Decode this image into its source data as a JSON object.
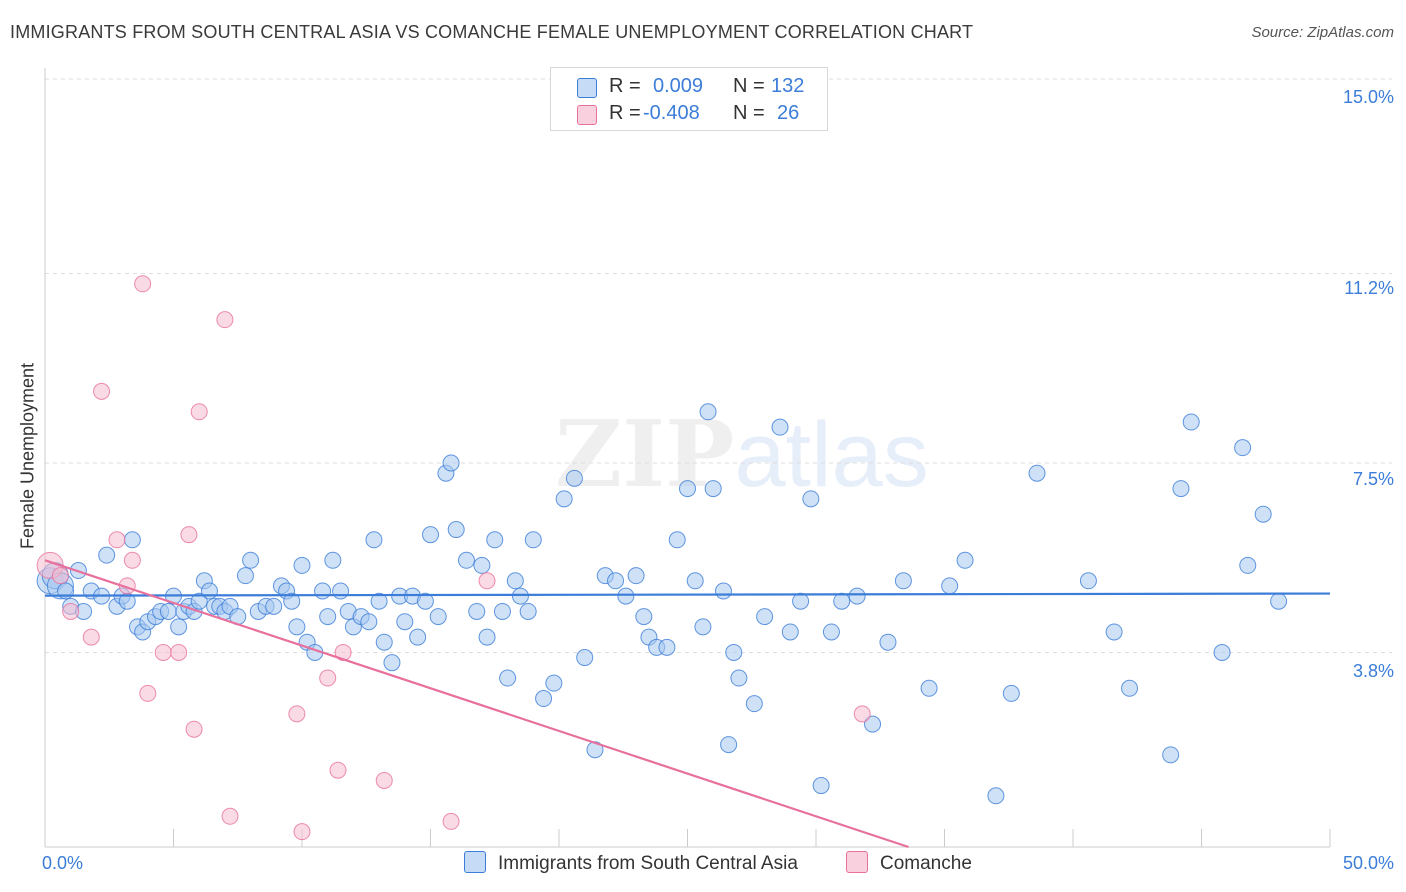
{
  "title": "IMMIGRANTS FROM SOUTH CENTRAL ASIA VS COMANCHE FEMALE UNEMPLOYMENT CORRELATION CHART",
  "source": "Source: ZipAtlas.com",
  "watermark": {
    "part1": "ZIP",
    "part2": "atlas"
  },
  "colors": {
    "blue": "#3b7dd8",
    "blue_fill": "#a8c8f0",
    "pink": "#e8709c",
    "pink_fill": "#f6bcd0",
    "grid": "#dddddd",
    "axis_text": "#3b7dd8"
  },
  "stats_legend": [
    {
      "series": "Immigrants from South Central Asia",
      "r_label": "R =",
      "r_value": "0.009",
      "n_label": "N =",
      "n_value": "132"
    },
    {
      "series": "Comanche",
      "r_label": "R =",
      "r_value": "-0.408",
      "n_label": "N =",
      "n_value": "26"
    }
  ],
  "chart_data": {
    "type": "scatter",
    "title": "IMMIGRANTS FROM SOUTH CENTRAL ASIA VS COMANCHE FEMALE UNEMPLOYMENT CORRELATION CHART",
    "xlabel": "",
    "ylabel": "Female Unemployment",
    "xlim": [
      0,
      50
    ],
    "ylim": [
      0,
      15.0
    ],
    "x_tick_labels": [
      "0.0%",
      "50.0%"
    ],
    "y_ticks": [
      3.8,
      7.5,
      11.2,
      15.0
    ],
    "y_tick_labels": [
      "3.8%",
      "7.5%",
      "11.2%",
      "15.0%"
    ],
    "grid": true,
    "legend_position": "bottom",
    "series": [
      {
        "name": "Immigrants from South Central Asia",
        "color": "#3b7dd8",
        "trend": {
          "x": [
            0,
            50
          ],
          "y": [
            4.91,
            4.95
          ]
        },
        "points": [
          [
            0.2,
            5.2
          ],
          [
            0.4,
            5.3
          ],
          [
            0.6,
            5.1
          ],
          [
            0.8,
            5.0
          ],
          [
            1.0,
            4.7
          ],
          [
            1.3,
            5.4
          ],
          [
            1.5,
            4.6
          ],
          [
            1.8,
            5.0
          ],
          [
            2.2,
            4.9
          ],
          [
            2.4,
            5.7
          ],
          [
            2.8,
            4.7
          ],
          [
            3.0,
            4.9
          ],
          [
            3.2,
            4.8
          ],
          [
            3.4,
            6.0
          ],
          [
            3.6,
            4.3
          ],
          [
            3.8,
            4.2
          ],
          [
            4.0,
            4.4
          ],
          [
            4.3,
            4.5
          ],
          [
            4.5,
            4.6
          ],
          [
            4.8,
            4.6
          ],
          [
            5.0,
            4.9
          ],
          [
            5.2,
            4.3
          ],
          [
            5.4,
            4.6
          ],
          [
            5.6,
            4.7
          ],
          [
            5.8,
            4.6
          ],
          [
            6.0,
            4.8
          ],
          [
            6.2,
            5.2
          ],
          [
            6.4,
            5.0
          ],
          [
            6.6,
            4.7
          ],
          [
            6.8,
            4.7
          ],
          [
            7.0,
            4.6
          ],
          [
            7.2,
            4.7
          ],
          [
            7.5,
            4.5
          ],
          [
            7.8,
            5.3
          ],
          [
            8.0,
            5.6
          ],
          [
            8.3,
            4.6
          ],
          [
            8.6,
            4.7
          ],
          [
            8.9,
            4.7
          ],
          [
            9.2,
            5.1
          ],
          [
            9.4,
            5.0
          ],
          [
            9.6,
            4.8
          ],
          [
            9.8,
            4.3
          ],
          [
            10.0,
            5.5
          ],
          [
            10.2,
            4.0
          ],
          [
            10.5,
            3.8
          ],
          [
            10.8,
            5.0
          ],
          [
            11.0,
            4.5
          ],
          [
            11.2,
            5.6
          ],
          [
            11.5,
            5.0
          ],
          [
            11.8,
            4.6
          ],
          [
            12.0,
            4.3
          ],
          [
            12.3,
            4.5
          ],
          [
            12.6,
            4.4
          ],
          [
            12.8,
            6.0
          ],
          [
            13.0,
            4.8
          ],
          [
            13.2,
            4.0
          ],
          [
            13.5,
            3.6
          ],
          [
            13.8,
            4.9
          ],
          [
            14.0,
            4.4
          ],
          [
            14.3,
            4.9
          ],
          [
            14.5,
            4.1
          ],
          [
            14.8,
            4.8
          ],
          [
            15.0,
            6.1
          ],
          [
            15.3,
            4.5
          ],
          [
            15.6,
            7.3
          ],
          [
            15.8,
            7.5
          ],
          [
            16.0,
            6.2
          ],
          [
            16.4,
            5.6
          ],
          [
            16.8,
            4.6
          ],
          [
            17.0,
            5.5
          ],
          [
            17.2,
            4.1
          ],
          [
            17.5,
            6.0
          ],
          [
            17.8,
            4.6
          ],
          [
            18.0,
            3.3
          ],
          [
            18.3,
            5.2
          ],
          [
            18.5,
            4.9
          ],
          [
            18.8,
            4.6
          ],
          [
            19.0,
            6.0
          ],
          [
            19.4,
            2.9
          ],
          [
            19.8,
            3.2
          ],
          [
            20.2,
            6.8
          ],
          [
            20.6,
            7.2
          ],
          [
            21.0,
            3.7
          ],
          [
            21.4,
            1.9
          ],
          [
            21.8,
            5.3
          ],
          [
            22.2,
            5.2
          ],
          [
            22.6,
            4.9
          ],
          [
            23.0,
            5.3
          ],
          [
            23.3,
            4.5
          ],
          [
            23.5,
            4.1
          ],
          [
            23.8,
            3.9
          ],
          [
            24.2,
            3.9
          ],
          [
            24.6,
            6.0
          ],
          [
            25.0,
            7.0
          ],
          [
            25.3,
            5.2
          ],
          [
            25.6,
            4.3
          ],
          [
            25.8,
            8.5
          ],
          [
            26.0,
            7.0
          ],
          [
            26.4,
            5.0
          ],
          [
            26.6,
            2.0
          ],
          [
            26.8,
            3.8
          ],
          [
            27.0,
            3.3
          ],
          [
            27.6,
            2.8
          ],
          [
            28.0,
            4.5
          ],
          [
            28.6,
            8.2
          ],
          [
            29.0,
            4.2
          ],
          [
            29.4,
            4.8
          ],
          [
            29.8,
            6.8
          ],
          [
            30.2,
            1.2
          ],
          [
            30.6,
            4.2
          ],
          [
            31.0,
            4.8
          ],
          [
            31.6,
            4.9
          ],
          [
            32.2,
            2.4
          ],
          [
            32.8,
            4.0
          ],
          [
            33.4,
            5.2
          ],
          [
            34.4,
            3.1
          ],
          [
            35.2,
            5.1
          ],
          [
            35.8,
            5.6
          ],
          [
            37.0,
            1.0
          ],
          [
            37.6,
            3.0
          ],
          [
            38.6,
            7.3
          ],
          [
            40.6,
            5.2
          ],
          [
            41.6,
            4.2
          ],
          [
            42.2,
            3.1
          ],
          [
            43.8,
            1.8
          ],
          [
            44.2,
            7.0
          ],
          [
            44.6,
            8.3
          ],
          [
            45.8,
            3.8
          ],
          [
            46.6,
            7.8
          ],
          [
            46.8,
            5.5
          ],
          [
            47.4,
            6.5
          ],
          [
            48.0,
            4.8
          ]
        ]
      },
      {
        "name": "Comanche",
        "color": "#e8709c",
        "trend": {
          "x": [
            0,
            33.6
          ],
          "y": [
            5.6,
            0.0
          ]
        },
        "points": [
          [
            0.2,
            5.5
          ],
          [
            0.6,
            5.3
          ],
          [
            1.0,
            4.6
          ],
          [
            1.8,
            4.1
          ],
          [
            2.2,
            8.9
          ],
          [
            2.8,
            6.0
          ],
          [
            3.2,
            5.1
          ],
          [
            3.4,
            5.6
          ],
          [
            3.8,
            11.0
          ],
          [
            4.0,
            3.0
          ],
          [
            4.6,
            3.8
          ],
          [
            5.2,
            3.8
          ],
          [
            5.6,
            6.1
          ],
          [
            5.8,
            2.3
          ],
          [
            6.0,
            8.5
          ],
          [
            7.0,
            10.3
          ],
          [
            7.2,
            0.6
          ],
          [
            9.8,
            2.6
          ],
          [
            10.0,
            0.3
          ],
          [
            11.0,
            3.3
          ],
          [
            11.4,
            1.5
          ],
          [
            11.6,
            3.8
          ],
          [
            13.2,
            1.3
          ],
          [
            15.8,
            0.5
          ],
          [
            17.2,
            5.2
          ],
          [
            31.8,
            2.6
          ]
        ]
      }
    ]
  }
}
